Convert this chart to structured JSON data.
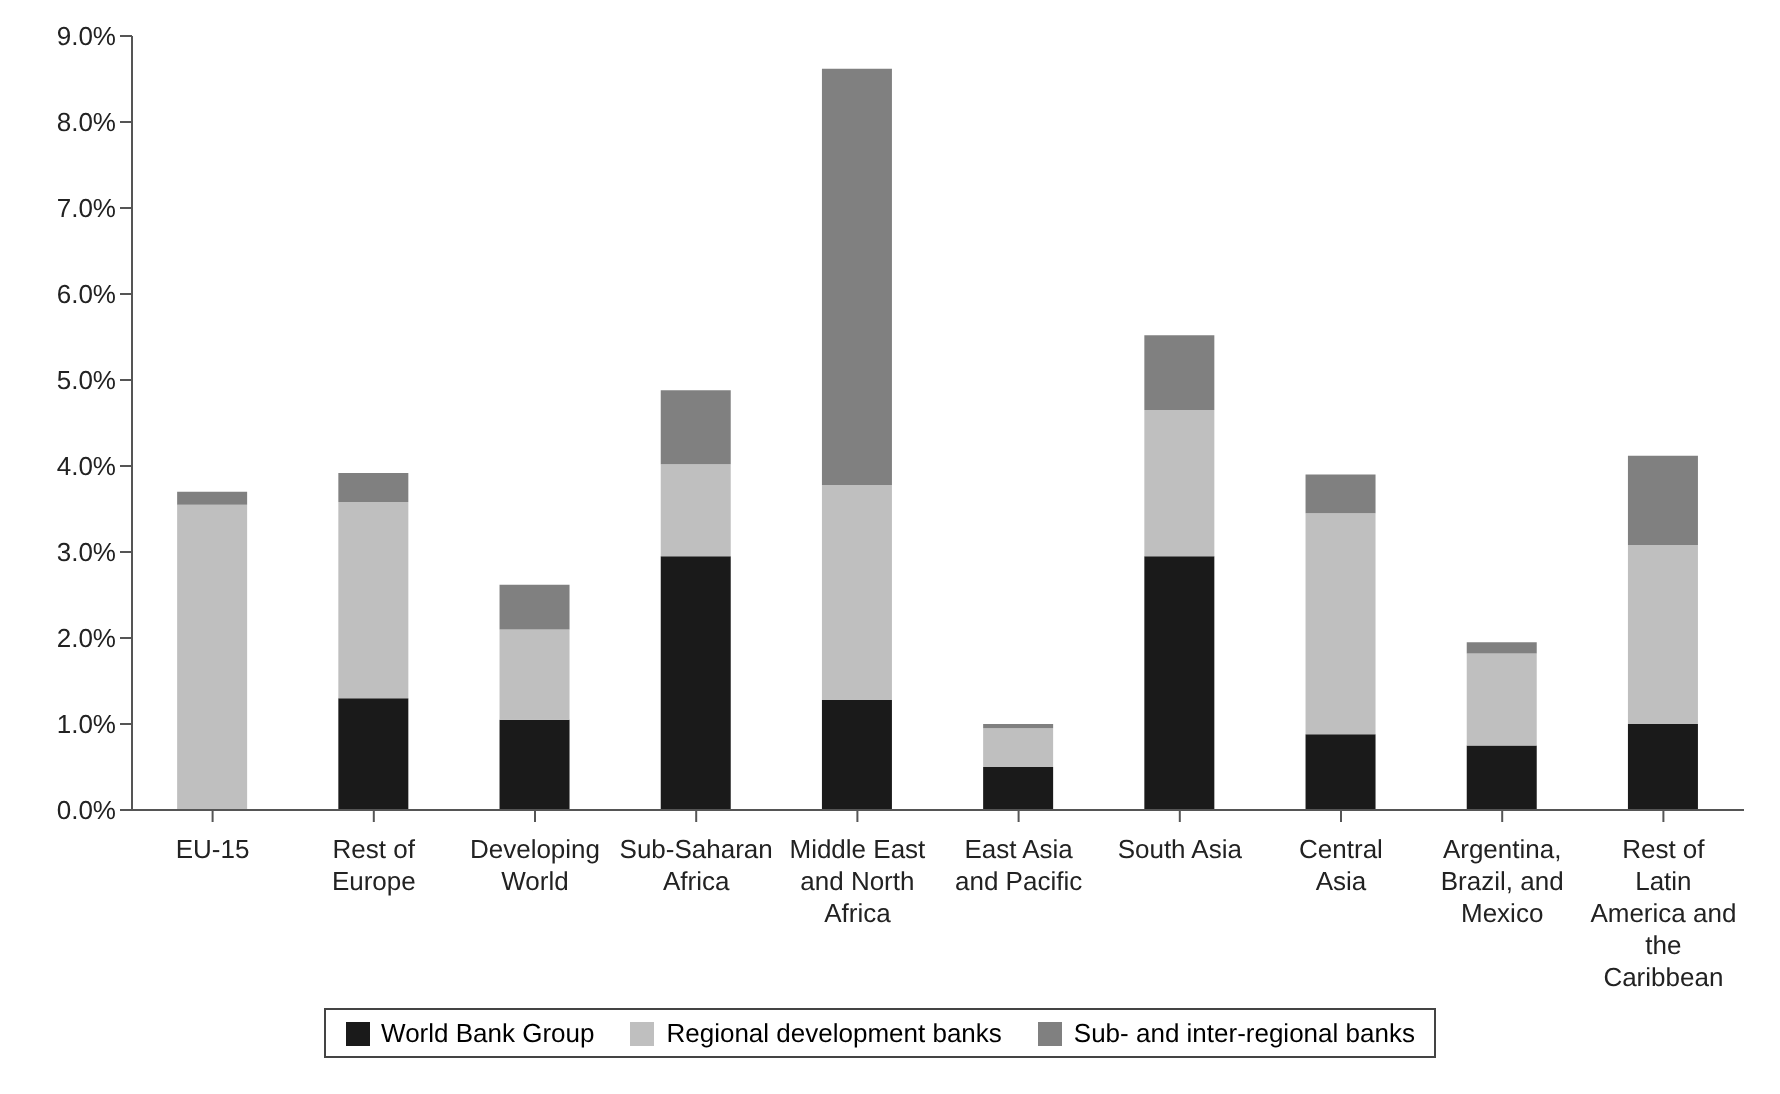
{
  "chart_data": {
    "type": "bar",
    "stacked": true,
    "categories": [
      "EU-15",
      "Rest of Europe",
      "Developing World",
      "Sub-Saharan Africa",
      "Middle East and North Africa",
      "East Asia and Pacific",
      "South Asia",
      "Central Asia",
      "Argentina, Brazil, and Mexico",
      "Rest of Latin America and the Caribbean"
    ],
    "series": [
      {
        "name": "World Bank Group",
        "color": "#1a1a1a",
        "values": [
          0,
          1.3,
          1.05,
          2.95,
          1.28,
          0.5,
          2.95,
          0.88,
          0.75,
          1.0
        ]
      },
      {
        "name": "Regional development banks",
        "color": "#bfbfbf",
        "values": [
          3.55,
          2.28,
          1.05,
          1.07,
          2.5,
          0.45,
          1.7,
          2.57,
          1.07,
          2.08
        ]
      },
      {
        "name": "Sub- and inter-regional banks",
        "color": "#808080",
        "values": [
          0.15,
          0.34,
          0.52,
          0.86,
          4.84,
          0.05,
          0.87,
          0.45,
          0.13,
          1.04
        ]
      }
    ],
    "ylim": [
      0,
      9
    ],
    "yticks": [
      {
        "value": 0,
        "label": "0.0%"
      },
      {
        "value": 1,
        "label": "1.0%"
      },
      {
        "value": 2,
        "label": "2.0%"
      },
      {
        "value": 3,
        "label": "3.0%"
      },
      {
        "value": 4,
        "label": "4.0%"
      },
      {
        "value": 5,
        "label": "5.0%"
      },
      {
        "value": 6,
        "label": "6.0%"
      },
      {
        "value": 7,
        "label": "7.0%"
      },
      {
        "value": 8,
        "label": "8.0%"
      },
      {
        "value": 9,
        "label": "9.0%"
      }
    ],
    "legend": "bottom"
  }
}
